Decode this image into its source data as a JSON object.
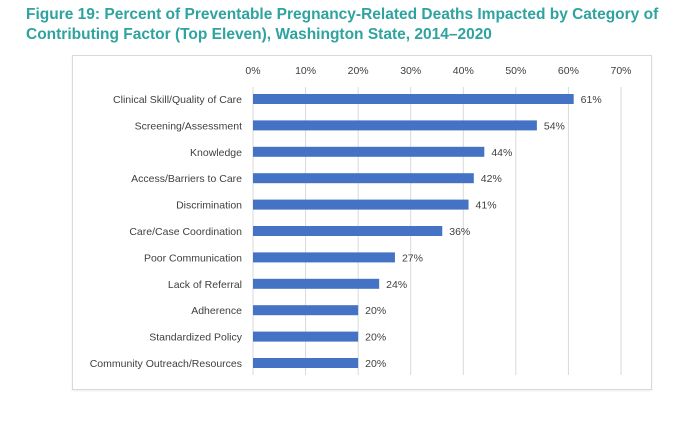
{
  "title": "Figure 19: Percent of Preventable Pregnancy-Related Deaths Impacted by Category of Contributing Factor (Top Eleven), Washington State, 2014–2020",
  "chart_data": {
    "type": "bar",
    "orientation": "horizontal",
    "title": "Figure 19: Percent of Preventable Pregnancy-Related Deaths Impacted by Category of Contributing Factor (Top Eleven), Washington State, 2014–2020",
    "categories": [
      "Clinical Skill/Quality of Care",
      "Screening/Assessment",
      "Knowledge",
      "Access/Barriers to Care",
      "Discrimination",
      "Care/Case Coordination",
      "Poor Communication",
      "Lack of Referral",
      "Adherence",
      "Standardized Policy",
      "Community Outreach/Resources"
    ],
    "values": [
      61,
      54,
      44,
      42,
      41,
      36,
      27,
      24,
      20,
      20,
      20
    ],
    "data_labels": [
      "61%",
      "54%",
      "44%",
      "42%",
      "41%",
      "36%",
      "27%",
      "24%",
      "20%",
      "20%",
      "20%"
    ],
    "xlim": [
      0,
      70
    ],
    "x_ticks": [
      "0%",
      "10%",
      "20%",
      "30%",
      "40%",
      "50%",
      "60%",
      "70%"
    ],
    "x_axis_position": "top",
    "grid": true,
    "bar_color": "#4472c4",
    "xlabel": "",
    "ylabel": ""
  }
}
